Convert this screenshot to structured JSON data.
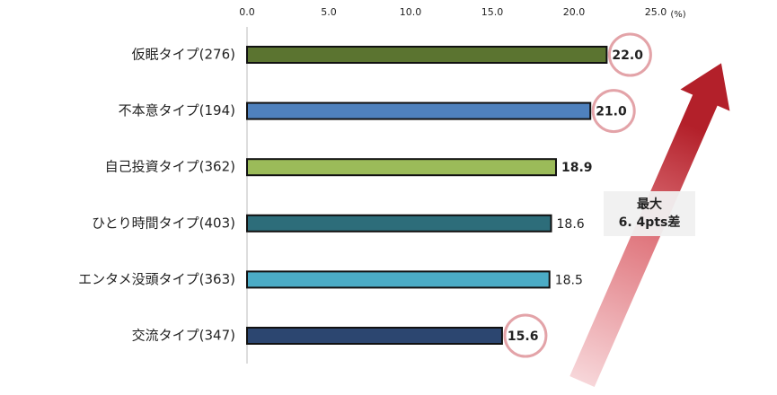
{
  "chart_data": {
    "type": "hbar",
    "xlabel": "(%)",
    "categories": [
      "仮眠タイプ(276)",
      "不本意タイプ(194)",
      "自己投資タイプ(362)",
      "ひとり時間タイプ(403)",
      "エンタメ没頭タイプ(363)",
      "交流タイプ(347)"
    ],
    "values": [
      22,
      21,
      18.9,
      18.6,
      18.5,
      15.6
    ],
    "value_labels": [
      "22.0",
      "21.0",
      "18.9",
      "18.6",
      "18.5",
      "15.6"
    ],
    "colors": [
      "#5b7430",
      "#4f81bd",
      "#9bbb59",
      "#2d6d7a",
      "#4bacc6",
      "#2c4670"
    ],
    "bold": [
      0,
      1,
      2,
      5
    ],
    "highlight": [
      0,
      1,
      5
    ],
    "xlim": [
      0,
      25
    ],
    "xticks": [
      {
        "value": 0,
        "label": "0.0"
      },
      {
        "value": 5,
        "label": "5.0"
      },
      {
        "value": 10,
        "label": "10.0"
      },
      {
        "value": 15,
        "label": "15.0"
      },
      {
        "value": 20,
        "label": "20.0"
      },
      {
        "value": 25,
        "label": "25.0"
      }
    ],
    "annotation": [
      "最大",
      "6. 4pts差"
    ]
  }
}
